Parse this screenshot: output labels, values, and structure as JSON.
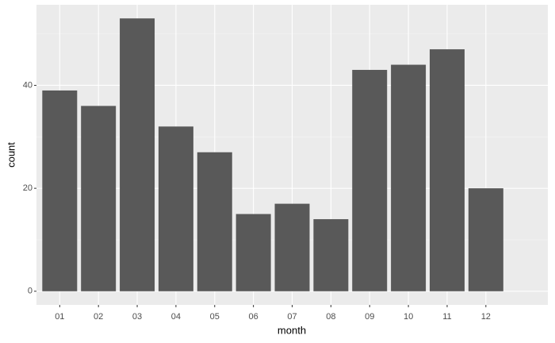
{
  "chart_data": {
    "type": "bar",
    "x_label": "month",
    "y_label": "count",
    "categories": [
      "01",
      "02",
      "03",
      "04",
      "05",
      "06",
      "07",
      "08",
      "09",
      "10",
      "11",
      "12"
    ],
    "values": [
      39,
      36,
      53,
      32,
      27,
      15,
      17,
      14,
      43,
      44,
      47,
      20
    ],
    "color": "#595959",
    "ylim": [
      -2.65,
      55.65
    ],
    "yticks": [
      0,
      20,
      40
    ],
    "minor_yticks": [
      10,
      30,
      50
    ],
    "grid": true
  }
}
